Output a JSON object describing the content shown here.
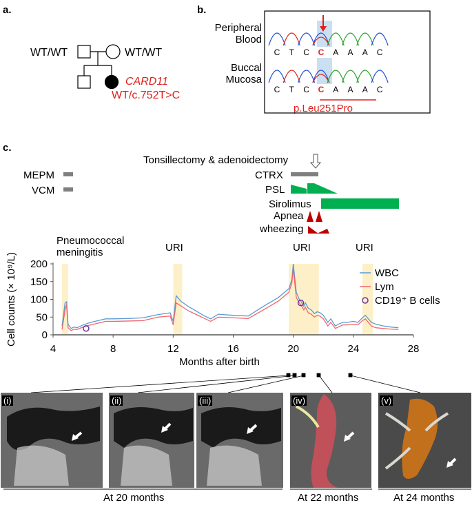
{
  "panel_a": {
    "label": "a.",
    "father_genotype": "WT/WT",
    "mother_genotype": "WT/WT",
    "gene": "CARD11",
    "patient_genotype": "WT/c.752T>C"
  },
  "panel_b": {
    "label": "b.",
    "row1_label_l1": "Peripheral",
    "row1_label_l2": "Blood",
    "row2_label_l1": "Buccal",
    "row2_label_l2": "Mucosa",
    "bases": [
      "C",
      "T",
      "C",
      "C",
      "A",
      "A",
      "A",
      "C"
    ],
    "mutation": "p.Leu251Pro"
  },
  "panel_c": {
    "label": "c.",
    "treatments": {
      "tonsillectomy": "Tonsillectomy & adenoidectomy",
      "mepm": "MEPM",
      "vcm": "VCM",
      "ctrx": "CTRX",
      "psl": "PSL",
      "sirolimus": "Sirolimus",
      "apnea": "Apnea",
      "wheezing": "wheezing"
    },
    "events": {
      "meningitis_l1": "Pneumococcal",
      "meningitis_l2": "meningitis",
      "uri1": "URI",
      "uri2": "URI",
      "uri3": "URI"
    },
    "colors": {
      "wbc": "#5b9bd5",
      "lym": "#f0666a",
      "cd19": "#7030a0",
      "highlight": "#fdf0c8",
      "green": "#00b050",
      "red": "#c00000",
      "gray": "#7f7f7f"
    }
  },
  "chart_data": {
    "type": "line",
    "xlabel": "Months after birth",
    "ylabel": "Cell counts (× 10⁹/L)",
    "xlim": [
      4,
      28
    ],
    "ylim": [
      0,
      200
    ],
    "xticks": [
      4,
      8,
      12,
      16,
      20,
      24,
      28
    ],
    "yticks": [
      0,
      50,
      100,
      150,
      200
    ],
    "highlight_ranges": [
      [
        4.6,
        5.0
      ],
      [
        12.0,
        12.6
      ],
      [
        19.7,
        21.7
      ],
      [
        24.6,
        25.3
      ]
    ],
    "series": [
      {
        "name": "WBC",
        "x": [
          4.6,
          4.8,
          4.9,
          5.0,
          5.2,
          5.4,
          5.6,
          6.0,
          6.5,
          7.0,
          7.5,
          8.0,
          9.0,
          10.0,
          11.0,
          11.8,
          12.0,
          12.2,
          12.5,
          13.0,
          13.5,
          14.0,
          14.5,
          15.0,
          16.0,
          17.0,
          18.0,
          19.0,
          19.7,
          19.9,
          20.0,
          20.2,
          20.4,
          20.5,
          20.7,
          20.8,
          21.0,
          21.2,
          21.4,
          21.6,
          21.8,
          22.0,
          22.3,
          22.5,
          22.8,
          23.0,
          23.3,
          23.6,
          24.0,
          24.3,
          24.6,
          24.8,
          25.0,
          25.2,
          25.5,
          26.0,
          26.5,
          27.0
        ],
        "y": [
          25,
          90,
          93,
          30,
          18,
          22,
          20,
          28,
          35,
          40,
          45,
          45,
          46,
          48,
          57,
          62,
          38,
          110,
          95,
          80,
          68,
          55,
          45,
          58,
          55,
          53,
          80,
          105,
          130,
          155,
          200,
          120,
          100,
          95,
          80,
          90,
          75,
          70,
          60,
          65,
          62,
          55,
          35,
          45,
          25,
          30,
          35,
          35,
          38,
          35,
          48,
          55,
          45,
          35,
          30,
          25,
          22,
          20
        ]
      },
      {
        "name": "Lym",
        "x": [
          4.6,
          4.8,
          4.9,
          5.0,
          5.2,
          5.4,
          5.6,
          6.0,
          6.5,
          7.0,
          7.5,
          8.0,
          9.0,
          10.0,
          11.0,
          11.8,
          12.0,
          12.2,
          12.5,
          13.0,
          13.5,
          14.0,
          14.5,
          15.0,
          16.0,
          17.0,
          18.0,
          19.0,
          19.7,
          19.9,
          20.0,
          20.2,
          20.4,
          20.5,
          20.7,
          20.8,
          21.0,
          21.2,
          21.4,
          21.6,
          21.8,
          22.0,
          22.3,
          22.5,
          22.8,
          23.0,
          23.3,
          23.6,
          24.0,
          24.3,
          24.6,
          24.8,
          25.0,
          25.2,
          25.5,
          26.0,
          26.5,
          27.0
        ],
        "y": [
          15,
          70,
          85,
          20,
          12,
          16,
          15,
          22,
          28,
          33,
          38,
          38,
          39,
          40,
          50,
          53,
          28,
          90,
          82,
          68,
          58,
          48,
          38,
          50,
          48,
          46,
          70,
          95,
          120,
          145,
          185,
          105,
          90,
          85,
          70,
          78,
          62,
          58,
          50,
          55,
          52,
          45,
          25,
          35,
          18,
          22,
          28,
          28,
          30,
          28,
          40,
          45,
          35,
          25,
          20,
          18,
          16,
          15
        ]
      },
      {
        "name": "CD19⁺ B cells",
        "x": [
          6.2,
          20.5
        ],
        "y": [
          18,
          90
        ]
      }
    ]
  },
  "images": {
    "labels": [
      "(i)",
      "(ii)",
      "(iii)",
      "(iv)",
      "(v)"
    ],
    "caption_20": "At 20 months",
    "caption_22": "At 22 months",
    "caption_24": "At 24 months"
  }
}
